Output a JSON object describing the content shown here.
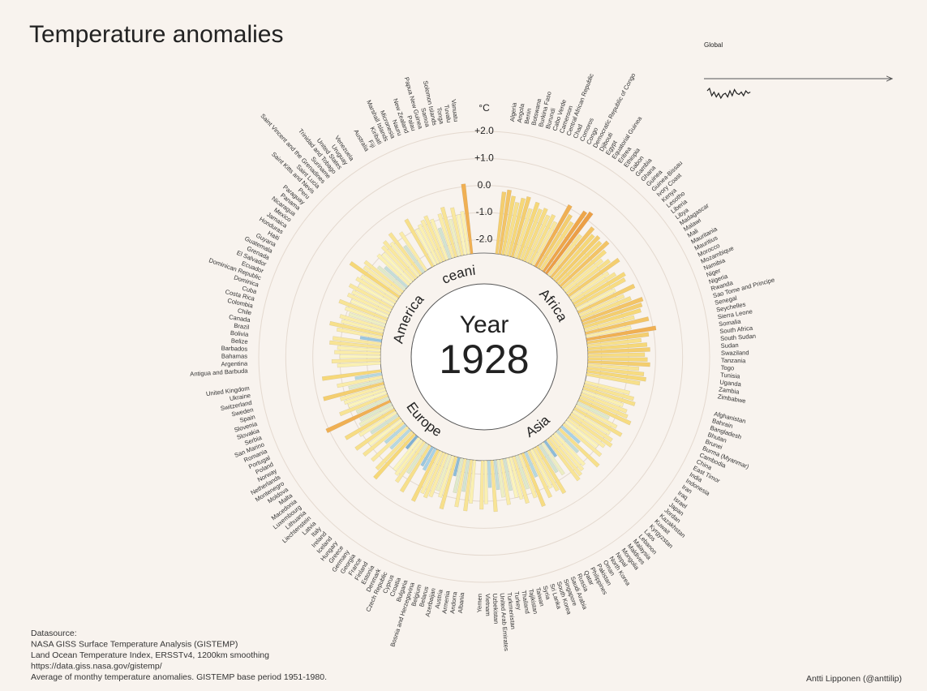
{
  "chart_data": {
    "type": "radial_bar",
    "title": "Temperature anomalies",
    "unit_label": "°C",
    "year_label": "Year",
    "year": "1928",
    "ylim": [
      -2.5,
      2.0
    ],
    "yticks": [
      {
        "value": -2,
        "label": "-2.0"
      },
      {
        "value": -1,
        "label": "-1.0"
      },
      {
        "value": 0,
        "label": "0.0"
      },
      {
        "value": 1,
        "label": "+1.0"
      },
      {
        "value": 2,
        "label": "+2.0"
      }
    ],
    "grid": true,
    "color_scale": [
      {
        "value": -2.5,
        "color": "#2f6fa8"
      },
      {
        "value": -1.6,
        "color": "#a8d2e6"
      },
      {
        "value": -1.0,
        "color": "#fbf4bc"
      },
      {
        "value": -0.3,
        "color": "#f6d878"
      },
      {
        "value": 0.2,
        "color": "#eea64a"
      },
      {
        "value": 1.0,
        "color": "#e0702c"
      },
      {
        "value": 2.0,
        "color": "#c0392b"
      }
    ],
    "series": [
      {
        "name": "Africa",
        "categories": [
          "Algeria",
          "Angola",
          "Benin",
          "Botswana",
          "Burkina Faso",
          "Burundi",
          "Cabo Verde",
          "Cameroon",
          "Central African Republic",
          "Chad",
          "Comoros",
          "Congo",
          "Democratic Republic of Congo",
          "Djibouti",
          "Egypt",
          "Equatorial Guinea",
          "Eritrea",
          "Ethiopia",
          "Gabon",
          "Gambia",
          "Ghana",
          "Guinea",
          "Guinea-Bissau",
          "Ivory Coast",
          "Kenya",
          "Lesotho",
          "Liberia",
          "Libya",
          "Madagascar",
          "Malawi",
          "Mali",
          "Mauritania",
          "Mauritius",
          "Morocco",
          "Mozambique",
          "Namibia",
          "Niger",
          "Nigeria",
          "Rwanda",
          "Sao Tome and Principe",
          "Senegal",
          "Seychelles",
          "Sierra Leone",
          "Somalia",
          "South Africa",
          "South Sudan",
          "Sudan",
          "Swaziland",
          "Tanzania",
          "Togo",
          "Tunisia",
          "Uganda",
          "Zambia",
          "Zimbabwe"
        ],
        "values": [
          -0.2,
          -0.1,
          -0.3,
          -0.5,
          -0.3,
          -0.2,
          -0.6,
          -0.3,
          -0.5,
          -0.4,
          -0.6,
          -0.5,
          -0.7,
          0.1,
          -0.2,
          -0.4,
          0.2,
          0.3,
          -0.6,
          -0.1,
          -0.3,
          -0.2,
          -0.3,
          -0.1,
          -0.4,
          -0.7,
          -0.5,
          -0.2,
          -0.8,
          -0.6,
          -0.3,
          -0.4,
          -0.9,
          -0.2,
          -0.7,
          -0.5,
          -0.1,
          -0.2,
          -0.3,
          -0.6,
          -0.1,
          -0.8,
          0.1,
          -0.2,
          -0.5,
          -0.3,
          -0.2,
          -0.4,
          -0.3,
          -0.2,
          -0.6,
          -0.4,
          -0.3,
          -0.5
        ]
      },
      {
        "name": "Asia",
        "categories": [
          "Afghanistan",
          "Bahrain",
          "Bangladesh",
          "Bhutan",
          "Brunei",
          "Burma (Myanmar)",
          "Cambodia",
          "China",
          "East Timor",
          "India",
          "Indonesia",
          "Iran",
          "Iraq",
          "Israel",
          "Japan",
          "Jordan",
          "Kazakhstan",
          "Kuwait",
          "Kyrgyzstan",
          "Laos",
          "Lebanon",
          "Malaysia",
          "Maldives",
          "Mongolia",
          "Nepal",
          "North Korea",
          "Oman",
          "Pakistan",
          "Philippines",
          "Qatar",
          "Russia",
          "Saudi Arabia",
          "Singapore",
          "South Korea",
          "Sri Lanka",
          "Syria",
          "Taiwan",
          "Tajikistan",
          "Thailand",
          "Turkey",
          "Turkmenistan",
          "United Arab Emirates",
          "Uzbekistan",
          "Vietnam",
          "Yemen"
        ],
        "values": [
          -0.8,
          -0.6,
          -0.5,
          -0.9,
          -0.7,
          -0.6,
          -0.4,
          -1.2,
          -0.8,
          -0.5,
          -0.9,
          -0.7,
          -0.6,
          -0.8,
          -1.0,
          -0.7,
          -1.6,
          -0.5,
          -1.4,
          -0.9,
          -0.8,
          -0.7,
          -0.6,
          -1.8,
          -1.1,
          -1.3,
          -0.5,
          -0.7,
          -0.9,
          -0.6,
          -1.5,
          -0.4,
          -0.8,
          -1.2,
          -0.7,
          -0.9,
          -1.0,
          -1.3,
          -0.8,
          -1.1,
          -1.4,
          -0.6,
          -1.5,
          -0.9,
          -0.7
        ]
      },
      {
        "name": "Europe",
        "categories": [
          "Albania",
          "Andorra",
          "Armenia",
          "Austria",
          "Azerbaijan",
          "Belarus",
          "Belgium",
          "Bosnia and Herzegovina",
          "Bulgaria",
          "Croatia",
          "Cyprus",
          "Czech Republic",
          "Denmark",
          "Estonia",
          "Finland",
          "France",
          "Georgia",
          "Germany",
          "Greece",
          "Hungary",
          "Iceland",
          "Ireland",
          "Italy",
          "Latvia",
          "Liechtenstein",
          "Lithuania",
          "Luxembourg",
          "Macedonia",
          "Malta",
          "Moldova",
          "Montenegro",
          "Netherlands",
          "Norway",
          "Poland",
          "Portugal",
          "Romania",
          "San Marino",
          "Serbia",
          "Slovakia",
          "Slovenia",
          "Spain",
          "Sweden",
          "Switzerland",
          "Ukraine",
          "United Kingdom"
        ],
        "values": [
          -0.9,
          -0.6,
          -1.3,
          -0.7,
          -1.2,
          -1.8,
          -0.5,
          -0.9,
          -1.1,
          -0.8,
          -0.7,
          -0.8,
          -0.4,
          -1.6,
          -1.7,
          -0.5,
          -1.2,
          -0.7,
          -0.9,
          -1.0,
          -1.9,
          -0.3,
          -0.6,
          -1.5,
          -0.7,
          -1.5,
          -0.6,
          -1.0,
          -0.5,
          -1.3,
          -0.9,
          -0.4,
          -1.1,
          -1.2,
          0.1,
          -1.2,
          -0.6,
          -1.0,
          -0.9,
          -0.8,
          -0.2,
          -1.2,
          -0.8,
          -1.5,
          -0.3
        ]
      },
      {
        "name": "America",
        "categories": [
          "Antigua and Barbuda",
          "Argentina",
          "Bahamas",
          "Barbados",
          "Belize",
          "Bolivia",
          "Brazil",
          "Canada",
          "Chile",
          "Colombia",
          "Costa Rica",
          "Cuba",
          "Dominica",
          "Dominican Republic",
          "Ecuador",
          "El Salvador",
          "Grenada",
          "Guatemala",
          "Guyana",
          "Haiti",
          "Honduras",
          "Jamaica",
          "Mexico",
          "Nicaragua",
          "Panama",
          "Paraguay",
          "Peru",
          "Saint Kitts and Nevis",
          "Saint Lucia",
          "Saint Vincent and the Grenadines",
          "Suriname",
          "Trinidad and Tobago",
          "United States",
          "Uruguay",
          "Venezuela"
        ],
        "values": [
          -0.9,
          -0.7,
          -1.0,
          -0.8,
          -0.9,
          -0.6,
          -0.7,
          -1.7,
          -0.8,
          -0.5,
          -0.9,
          -0.8,
          -1.1,
          -0.9,
          -0.6,
          -1.0,
          -0.8,
          -0.9,
          -0.7,
          -1.0,
          -0.8,
          -0.9,
          -0.3,
          -0.8,
          -0.7,
          -1.2,
          -1.4,
          -0.9,
          -1.0,
          -0.8,
          -0.7,
          -0.9,
          -0.6,
          -1.3,
          -0.8
        ]
      },
      {
        "name": "Oceania",
        "categories": [
          "Australia",
          "Fiji",
          "Kiribati",
          "Marshall Islands",
          "Micronesia",
          "Nauru",
          "New Zealand",
          "Palau",
          "Papua New Guinea",
          "Samoa",
          "Solomon Islands",
          "Tonga",
          "Tuvalu",
          "Vanuatu"
        ],
        "values": [
          -0.5,
          -1.0,
          -0.9,
          -0.8,
          -0.7,
          -0.9,
          -1.3,
          -0.8,
          -0.6,
          -1.1,
          -0.7,
          -1.0,
          -0.9,
          0.1
        ]
      }
    ],
    "global": {
      "title": "Global",
      "ylim": [
        -0.8,
        0.2
      ],
      "values": [
        -0.2,
        -0.1,
        -0.4,
        -0.25,
        -0.45,
        -0.3,
        -0.5,
        -0.35,
        -0.3,
        -0.45,
        -0.2,
        -0.4,
        -0.15,
        -0.3,
        -0.35,
        -0.25,
        -0.4,
        -0.2,
        -0.3,
        -0.25
      ]
    },
    "source_lines": [
      "Datasource:",
      "NASA GISS Surface Temperature Analysis (GISTEMP)",
      "Land Ocean Temperature Index, ERSSTv4, 1200km smoothing",
      "https://data.giss.nasa.gov/gistemp/",
      "Average of monthy temperature anomalies. GISTEMP base period 1951-1980."
    ],
    "credit": "Antti Lipponen (@anttilip)"
  }
}
